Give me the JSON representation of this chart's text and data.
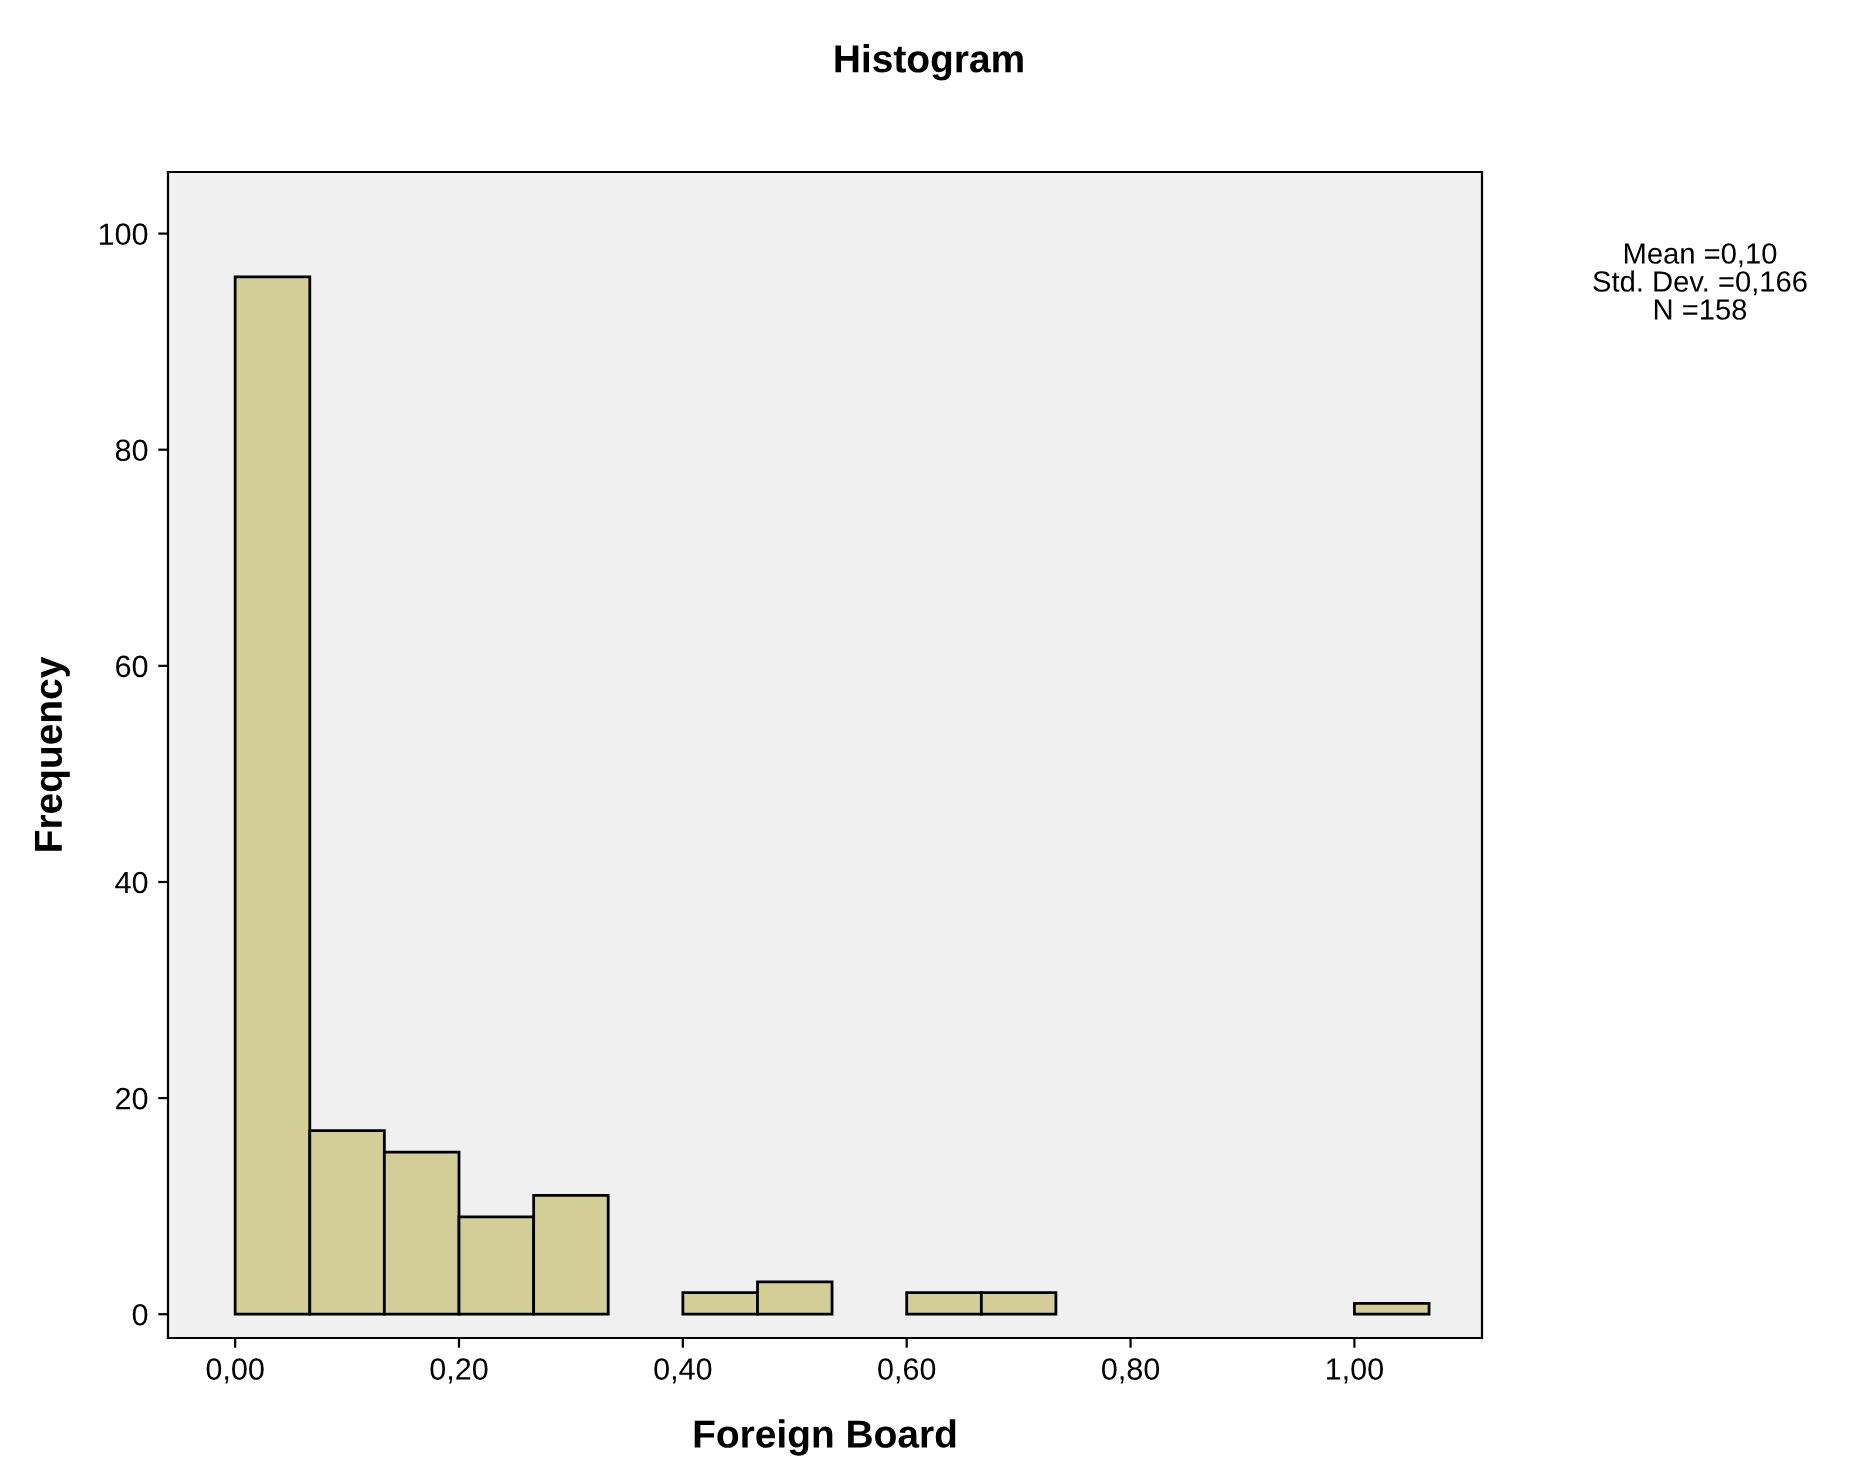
{
  "chart_data": {
    "type": "histogram",
    "title": "Histogram",
    "xlabel": "Foreign Board",
    "ylabel": "Frequency",
    "bins": [
      0,
      0.0667,
      0.1333,
      0.2,
      0.2667,
      0.3333,
      0.4,
      0.4667,
      0.5333,
      0.6,
      0.6667,
      0.7333,
      0.8,
      0.8667,
      0.9333,
      1.0,
      1.0667
    ],
    "values": [
      96,
      17,
      15,
      9,
      11,
      0,
      2,
      3,
      0,
      2,
      2,
      0,
      0,
      0,
      0,
      1
    ],
    "color": "#d3ce97",
    "xlim": [
      -0.06,
      1.114
    ],
    "xticks": [
      {
        "value": 0,
        "label": "0,00"
      },
      {
        "value": 0.2,
        "label": "0,20"
      },
      {
        "value": 0.4,
        "label": "0,40"
      },
      {
        "value": 0.6,
        "label": "0,60"
      },
      {
        "value": 0.8,
        "label": "0,80"
      },
      {
        "value": 1.0,
        "label": "1,00"
      }
    ],
    "ylim": [
      -2.2,
      105.7
    ],
    "yticks": [
      0,
      20,
      40,
      60,
      80,
      100
    ],
    "grid": false,
    "annotations": [
      "Mean =0,10",
      "Std. Dev. =0,166",
      "N =158"
    ]
  }
}
